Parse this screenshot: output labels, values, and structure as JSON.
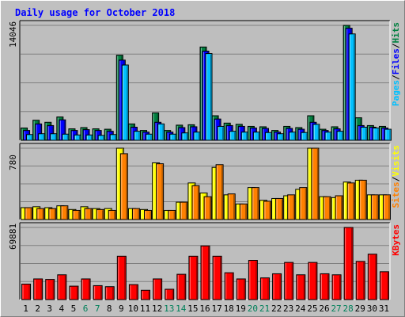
{
  "chart_data": {
    "type": "bar",
    "title": "Daily usage for October 2018",
    "categories": [
      "1",
      "2",
      "3",
      "4",
      "5",
      "6",
      "7",
      "8",
      "9",
      "10",
      "11",
      "12",
      "13",
      "14",
      "15",
      "16",
      "17",
      "18",
      "19",
      "20",
      "21",
      "22",
      "23",
      "24",
      "25",
      "26",
      "27",
      "28",
      "29",
      "30",
      "31"
    ],
    "weekend_days": [
      "6",
      "7",
      "13",
      "14",
      "20",
      "21",
      "27",
      "28"
    ],
    "grid": true,
    "panels": [
      {
        "name": "hits",
        "ymax_label": "14046",
        "ymax": 14046,
        "right_label": [
          "Pages",
          "Files",
          "Hits"
        ],
        "series": [
          {
            "name": "Hits",
            "color": "#008040",
            "values": [
              1500,
              2450,
              2200,
              2850,
              1400,
              1550,
              1400,
              1350,
              10400,
              2000,
              1200,
              3350,
              1200,
              1850,
              1900,
              11400,
              3000,
              2100,
              1950,
              1700,
              1650,
              1200,
              1700,
              1550,
              3000,
              1350,
              1650,
              14046,
              2750,
              1800,
              1700
            ]
          },
          {
            "name": "Files",
            "color": "#0000ff",
            "values": [
              1200,
              2000,
              1800,
              2500,
              1200,
              1300,
              1200,
              1100,
              9800,
              1600,
              1000,
              2200,
              1000,
              1550,
              1650,
              10900,
              2600,
              1800,
              1700,
              1500,
              1450,
              1000,
              1450,
              1350,
              2200,
              1200,
              1400,
              13700,
              1800,
              1600,
              1500
            ]
          },
          {
            "name": "Pages",
            "color": "#00c0ff",
            "values": [
              700,
              800,
              800,
              750,
              650,
              650,
              600,
              700,
              9200,
              1100,
              750,
              2000,
              750,
              900,
              1000,
              10600,
              1700,
              1100,
              1000,
              1000,
              950,
              800,
              1000,
              950,
              1950,
              1000,
              1100,
              13000,
              1600,
              1500,
              1350
            ]
          }
        ]
      },
      {
        "name": "visits",
        "ymax_label": "780",
        "ymax": 780,
        "right_label": [
          "Sites",
          "Visits"
        ],
        "series": [
          {
            "name": "Visits",
            "color": "#ffff00",
            "values": [
              130,
              140,
              130,
              150,
              110,
              140,
              120,
              120,
              780,
              120,
              110,
              620,
              100,
              190,
              400,
              290,
              570,
              270,
              170,
              350,
              210,
              230,
              260,
              330,
              780,
              250,
              240,
              410,
              430,
              270,
              270
            ]
          },
          {
            "name": "Sites",
            "color": "#ff8000",
            "values": [
              130,
              120,
              120,
              150,
              100,
              120,
              110,
              100,
              720,
              120,
              100,
              610,
              100,
              190,
              370,
              250,
              600,
              280,
              170,
              350,
              200,
              230,
              270,
              350,
              780,
              250,
              260,
              400,
              430,
              270,
              270
            ]
          }
        ]
      },
      {
        "name": "kbytes",
        "ymax_label": "69881",
        "ymax": 69881,
        "right_label": [
          "KBytes"
        ],
        "series": [
          {
            "name": "KBytes",
            "color": "#ff0000",
            "values": [
              15000,
              20000,
              19500,
              24000,
              13000,
              20000,
              13500,
              12500,
              42000,
              14500,
              9000,
              20000,
              10000,
              24500,
              42000,
              52000,
              42000,
              26000,
              20000,
              38000,
              21000,
              25000,
              36000,
              24000,
              36000,
              25000,
              24000,
              69881,
              37000,
              44000,
              27000
            ]
          }
        ]
      }
    ]
  },
  "colors": {
    "background": "#c0c0c0",
    "plot_bg": "#bebebe",
    "title": "#0000ff",
    "weekday_label": "#000000",
    "weekend_label": "#00805a",
    "grid": "#808080"
  }
}
